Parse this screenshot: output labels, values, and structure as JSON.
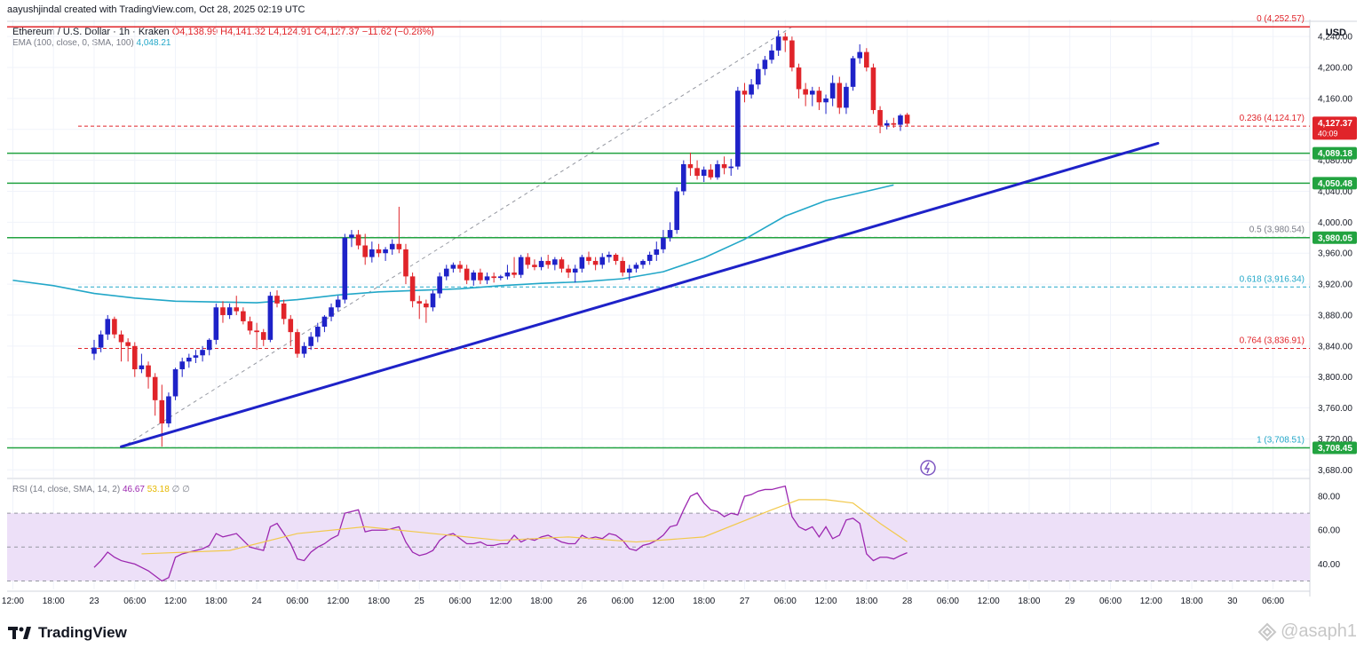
{
  "header": {
    "attribution": "aayushjindal created with TradingView.com, Oct 28, 2025 02:19 UTC",
    "symbol": "Ethereum / U.S. Dollar · 1h · Kraken",
    "ohlc": "O4,138.99 H4,141.32 L4,124.91 C4,127.37 −11.62 (−0.28%)",
    "ema_label": "EMA (100, close, 0, SMA, 100)",
    "ema_value": "4,048.21",
    "currency": "USD"
  },
  "rsi_legend": {
    "label": "RSI (14, close, SMA, 14, 2)",
    "rsi_value": "46.67",
    "sma_value": "53.18",
    "extra": "∅ ∅"
  },
  "footer": {
    "brand": "TradingView",
    "watermark": "@asaph1"
  },
  "colors": {
    "up": "#1e22c8",
    "down": "#e0242a",
    "ema": "#22a7c8",
    "trendline": "#1e22c8",
    "support": "#22a340",
    "fib_red": "#e0242a",
    "fib_teal": "#22a7c8",
    "rsi": "#9c27b0",
    "rsi_sma": "#f2c94c",
    "rsi_band": "#ede0f8"
  },
  "chart_data": {
    "type": "candlestick",
    "interval": "1h",
    "price_axis": {
      "ylim": [
        3670,
        4262
      ],
      "ticks": [
        "4,240.00",
        "4,200.00",
        "4,160.00",
        "4,120.00",
        "4,080.00",
        "4,040.00",
        "4,000.00",
        "3,960.00",
        "3,920.00",
        "3,880.00",
        "3,840.00",
        "3,800.00",
        "3,760.00",
        "3,720.00",
        "3,680.00"
      ],
      "tick_values": [
        4240,
        4200,
        4160,
        4120,
        4080,
        4040,
        4000,
        3960,
        3920,
        3880,
        3840,
        3800,
        3760,
        3720,
        3680
      ]
    },
    "time_axis": {
      "ticks": [
        "12:00",
        "18:00",
        "23",
        "06:00",
        "12:00",
        "18:00",
        "24",
        "06:00",
        "12:00",
        "18:00",
        "25",
        "06:00",
        "12:00",
        "18:00",
        "26",
        "06:00",
        "12:00",
        "18:00",
        "27",
        "06:00",
        "12:00",
        "18:00",
        "28",
        "06:00",
        "12:00",
        "18:00",
        "29",
        "06:00",
        "12:00",
        "18:00",
        "30",
        "06:00"
      ],
      "hour_offsets": [
        -12,
        -6,
        0,
        6,
        12,
        18,
        24,
        30,
        36,
        42,
        48,
        54,
        60,
        66,
        72,
        78,
        84,
        90,
        96,
        102,
        108,
        114,
        120,
        126,
        132,
        138,
        144,
        150,
        156,
        162,
        168,
        174
      ]
    },
    "candles": [
      [
        3830,
        3848,
        3822,
        3838
      ],
      [
        3838,
        3860,
        3832,
        3855
      ],
      [
        3855,
        3880,
        3848,
        3875
      ],
      [
        3875,
        3878,
        3850,
        3855
      ],
      [
        3855,
        3860,
        3820,
        3845
      ],
      [
        3845,
        3850,
        3820,
        3840
      ],
      [
        3840,
        3845,
        3800,
        3810
      ],
      [
        3810,
        3830,
        3805,
        3815
      ],
      [
        3815,
        3820,
        3785,
        3800
      ],
      [
        3800,
        3805,
        3750,
        3770
      ],
      [
        3770,
        3790,
        3710,
        3740
      ],
      [
        3740,
        3780,
        3735,
        3775
      ],
      [
        3775,
        3812,
        3770,
        3810
      ],
      [
        3810,
        3825,
        3800,
        3820
      ],
      [
        3820,
        3830,
        3812,
        3825
      ],
      [
        3825,
        3835,
        3818,
        3828
      ],
      [
        3828,
        3840,
        3820,
        3835
      ],
      [
        3835,
        3850,
        3828,
        3848
      ],
      [
        3848,
        3895,
        3842,
        3890
      ],
      [
        3890,
        3898,
        3870,
        3880
      ],
      [
        3880,
        3895,
        3875,
        3890
      ],
      [
        3890,
        3905,
        3880,
        3885
      ],
      [
        3885,
        3890,
        3868,
        3872
      ],
      [
        3872,
        3878,
        3855,
        3860
      ],
      [
        3860,
        3870,
        3835,
        3858
      ],
      [
        3858,
        3862,
        3840,
        3848
      ],
      [
        3848,
        3910,
        3845,
        3905
      ],
      [
        3905,
        3912,
        3890,
        3895
      ],
      [
        3895,
        3900,
        3868,
        3875
      ],
      [
        3875,
        3880,
        3840,
        3858
      ],
      [
        3858,
        3862,
        3825,
        3830
      ],
      [
        3830,
        3845,
        3825,
        3840
      ],
      [
        3840,
        3858,
        3835,
        3852
      ],
      [
        3852,
        3870,
        3845,
        3865
      ],
      [
        3865,
        3880,
        3858,
        3878
      ],
      [
        3878,
        3895,
        3872,
        3890
      ],
      [
        3890,
        3905,
        3885,
        3900
      ],
      [
        3900,
        3985,
        3895,
        3980
      ],
      [
        3980,
        3990,
        3968,
        3984
      ],
      [
        3984,
        3990,
        3965,
        3970
      ],
      [
        3970,
        3985,
        3945,
        3955
      ],
      [
        3955,
        3975,
        3948,
        3965
      ],
      [
        3965,
        3972,
        3955,
        3960
      ],
      [
        3960,
        3968,
        3950,
        3965
      ],
      [
        3965,
        3978,
        3958,
        3972
      ],
      [
        3972,
        4020,
        3960,
        3965
      ],
      [
        3965,
        3972,
        3920,
        3930
      ],
      [
        3930,
        3935,
        3890,
        3898
      ],
      [
        3898,
        3905,
        3875,
        3895
      ],
      [
        3895,
        3900,
        3870,
        3890
      ],
      [
        3890,
        3912,
        3885,
        3908
      ],
      [
        3908,
        3935,
        3902,
        3930
      ],
      [
        3930,
        3945,
        3925,
        3940
      ],
      [
        3940,
        3948,
        3935,
        3945
      ],
      [
        3945,
        3950,
        3935,
        3940
      ],
      [
        3940,
        3945,
        3920,
        3925
      ],
      [
        3925,
        3938,
        3918,
        3935
      ],
      [
        3935,
        3940,
        3920,
        3925
      ],
      [
        3925,
        3935,
        3920,
        3930
      ],
      [
        3930,
        3935,
        3922,
        3928
      ],
      [
        3928,
        3932,
        3925,
        3930
      ],
      [
        3930,
        3945,
        3926,
        3935
      ],
      [
        3935,
        3955,
        3928,
        3932
      ],
      [
        3932,
        3958,
        3928,
        3955
      ],
      [
        3955,
        3960,
        3940,
        3945
      ],
      [
        3945,
        3952,
        3938,
        3942
      ],
      [
        3942,
        3955,
        3938,
        3950
      ],
      [
        3950,
        3958,
        3940,
        3945
      ],
      [
        3945,
        3955,
        3938,
        3952
      ],
      [
        3952,
        3955,
        3935,
        3940
      ],
      [
        3940,
        3945,
        3928,
        3935
      ],
      [
        3935,
        3945,
        3922,
        3940
      ],
      [
        3940,
        3958,
        3935,
        3955
      ],
      [
        3955,
        3962,
        3945,
        3950
      ],
      [
        3950,
        3955,
        3938,
        3945
      ],
      [
        3945,
        3960,
        3940,
        3955
      ],
      [
        3955,
        3962,
        3948,
        3958
      ],
      [
        3958,
        3960,
        3945,
        3950
      ],
      [
        3950,
        3955,
        3930,
        3935
      ],
      [
        3935,
        3945,
        3925,
        3940
      ],
      [
        3940,
        3948,
        3935,
        3945
      ],
      [
        3945,
        3952,
        3940,
        3950
      ],
      [
        3950,
        3962,
        3945,
        3958
      ],
      [
        3958,
        3975,
        3950,
        3965
      ],
      [
        3965,
        3990,
        3960,
        3980
      ],
      [
        3980,
        4000,
        3975,
        3990
      ],
      [
        3990,
        4045,
        3985,
        4040
      ],
      [
        4040,
        4080,
        4035,
        4075
      ],
      [
        4075,
        4090,
        4060,
        4070
      ],
      [
        4070,
        4080,
        4055,
        4060
      ],
      [
        4060,
        4072,
        4052,
        4068
      ],
      [
        4068,
        4075,
        4055,
        4058
      ],
      [
        4058,
        4080,
        4055,
        4075
      ],
      [
        4075,
        4085,
        4062,
        4070
      ],
      [
        4070,
        4082,
        4060,
        4072
      ],
      [
        4072,
        4175,
        4068,
        4170
      ],
      [
        4170,
        4180,
        4155,
        4165
      ],
      [
        4165,
        4185,
        4160,
        4178
      ],
      [
        4178,
        4205,
        4172,
        4198
      ],
      [
        4198,
        4215,
        4190,
        4210
      ],
      [
        4210,
        4230,
        4205,
        4222
      ],
      [
        4222,
        4248,
        4215,
        4240
      ],
      [
        4240,
        4245,
        4220,
        4235
      ],
      [
        4235,
        4240,
        4195,
        4200
      ],
      [
        4200,
        4205,
        4160,
        4172
      ],
      [
        4172,
        4180,
        4150,
        4165
      ],
      [
        4165,
        4175,
        4150,
        4170
      ],
      [
        4170,
        4175,
        4145,
        4155
      ],
      [
        4155,
        4165,
        4140,
        4160
      ],
      [
        4160,
        4190,
        4150,
        4180
      ],
      [
        4180,
        4188,
        4140,
        4148
      ],
      [
        4148,
        4180,
        4140,
        4175
      ],
      [
        4175,
        4215,
        4170,
        4212
      ],
      [
        4212,
        4230,
        4205,
        4220
      ],
      [
        4220,
        4225,
        4195,
        4200
      ],
      [
        4200,
        4205,
        4140,
        4145
      ],
      [
        4145,
        4150,
        4115,
        4125
      ],
      [
        4125,
        4132,
        4120,
        4128
      ],
      [
        4128,
        4135,
        4122,
        4126
      ],
      [
        4126,
        4140,
        4118,
        4138
      ],
      [
        4138.99,
        4141.32,
        4124.91,
        4127.37
      ]
    ],
    "ema100": {
      "name": "EMA (100, close, 0, SMA, 100)",
      "points": [
        [
          -12,
          3925
        ],
        [
          -6,
          3918
        ],
        [
          0,
          3908
        ],
        [
          6,
          3902
        ],
        [
          12,
          3898
        ],
        [
          18,
          3897
        ],
        [
          24,
          3896
        ],
        [
          30,
          3900
        ],
        [
          36,
          3906
        ],
        [
          42,
          3910
        ],
        [
          48,
          3912
        ],
        [
          54,
          3914
        ],
        [
          60,
          3918
        ],
        [
          66,
          3921
        ],
        [
          72,
          3923
        ],
        [
          78,
          3927
        ],
        [
          84,
          3936
        ],
        [
          90,
          3954
        ],
        [
          96,
          3978
        ],
        [
          102,
          4008
        ],
        [
          108,
          4028
        ],
        [
          114,
          4040
        ],
        [
          118,
          4048.21
        ]
      ]
    },
    "trendline": {
      "from": [
        4,
        3710
      ],
      "to": [
        157,
        4102
      ]
    },
    "fib_anchor_line": {
      "from": [
        4,
        3708.51
      ],
      "to": [
        103,
        4252.57
      ]
    },
    "support_lines": [
      4252.57,
      4089.18,
      4050.48,
      3980.05,
      3708.45
    ],
    "fib_levels": [
      {
        "label": "0 (4,252.57)",
        "value": 4252.57,
        "color": "red"
      },
      {
        "label": "0.236 (4,124.17)",
        "value": 4124.17,
        "color": "red"
      },
      {
        "label": "0.5 (3,980.54)",
        "value": 3980.54,
        "color": "gray"
      },
      {
        "label": "0.618 (3,916.34)",
        "value": 3916.34,
        "color": "teal"
      },
      {
        "label": "0.764 (3,836.91)",
        "value": 3836.91,
        "color": "red"
      },
      {
        "label": "1 (3,708.51)",
        "value": 3708.51,
        "color": "teal"
      }
    ],
    "price_tags": [
      {
        "text": "4,127.37",
        "sub": "40:09",
        "value": 4127.37,
        "kind": "last"
      },
      {
        "text": "4,089.18",
        "value": 4089.18,
        "kind": "green"
      },
      {
        "text": "4,050.48",
        "value": 4050.48,
        "kind": "green"
      },
      {
        "text": "3,980.05",
        "value": 3980.05,
        "kind": "green"
      },
      {
        "text": "3,708.45",
        "value": 3708.45,
        "kind": "green"
      }
    ],
    "rsi": {
      "ylim": [
        25,
        90
      ],
      "ticks": [
        "80.00",
        "60.00",
        "40.00"
      ],
      "tick_values": [
        80,
        60,
        40
      ],
      "band": [
        30,
        70
      ],
      "mid": 50,
      "values": [
        38,
        42,
        47,
        44,
        42,
        41,
        40,
        38,
        36,
        33,
        30,
        32,
        44,
        46,
        47,
        48,
        49,
        51,
        58,
        56,
        57,
        58,
        54,
        50,
        49,
        48,
        62,
        64,
        58,
        52,
        43,
        42,
        47,
        50,
        52,
        55,
        57,
        70,
        71,
        72,
        59,
        60,
        60,
        60,
        61,
        62,
        53,
        47,
        45,
        46,
        48,
        54,
        57,
        58,
        55,
        52,
        52,
        53,
        51,
        51,
        52,
        52,
        57,
        53,
        55,
        54,
        56,
        57,
        55,
        53,
        52,
        52,
        57,
        55,
        56,
        55,
        58,
        57,
        54,
        49,
        48,
        51,
        52,
        54,
        57,
        62,
        63,
        72,
        80,
        82,
        76,
        72,
        71,
        68,
        70,
        69,
        80,
        81,
        83,
        84,
        84,
        85,
        86,
        68,
        62,
        60,
        62,
        56,
        62,
        55,
        57,
        66,
        67,
        64,
        46,
        42,
        44,
        44,
        43,
        45,
        46.67
      ],
      "sma_values": [
        [
          7,
          46
        ],
        [
          20,
          48
        ],
        [
          30,
          58
        ],
        [
          40,
          62
        ],
        [
          50,
          58
        ],
        [
          60,
          54
        ],
        [
          70,
          56
        ],
        [
          80,
          53
        ],
        [
          90,
          56
        ],
        [
          100,
          72
        ],
        [
          104,
          78
        ],
        [
          108,
          78
        ],
        [
          112,
          76
        ],
        [
          116,
          64
        ],
        [
          120,
          53.18
        ]
      ]
    }
  }
}
